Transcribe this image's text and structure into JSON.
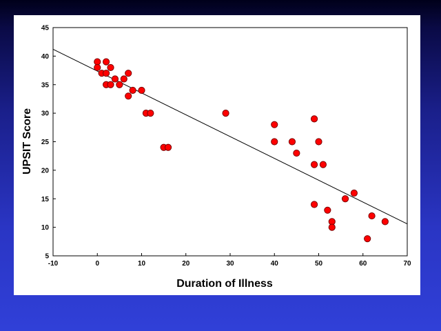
{
  "chart_data": {
    "type": "scatter",
    "title": "",
    "xlabel": "Duration of Illness",
    "ylabel": "UPSIT Score",
    "xlim": [
      -10,
      70
    ],
    "ylim": [
      5,
      45
    ],
    "x_ticks": [
      -10,
      0,
      10,
      20,
      30,
      40,
      50,
      60,
      70
    ],
    "y_ticks": [
      5,
      10,
      15,
      20,
      25,
      30,
      35,
      40,
      45
    ],
    "grid": false,
    "series": [
      {
        "color": "#ff0000",
        "points": [
          {
            "x": 0,
            "y": 39
          },
          {
            "x": 0,
            "y": 38
          },
          {
            "x": 1,
            "y": 37
          },
          {
            "x": 2,
            "y": 39
          },
          {
            "x": 2,
            "y": 37
          },
          {
            "x": 3,
            "y": 38
          },
          {
            "x": 2,
            "y": 35
          },
          {
            "x": 3,
            "y": 35
          },
          {
            "x": 4,
            "y": 36
          },
          {
            "x": 5,
            "y": 35
          },
          {
            "x": 6,
            "y": 36
          },
          {
            "x": 7,
            "y": 37
          },
          {
            "x": 7,
            "y": 33
          },
          {
            "x": 8,
            "y": 34
          },
          {
            "x": 10,
            "y": 34
          },
          {
            "x": 11,
            "y": 30
          },
          {
            "x": 12,
            "y": 30
          },
          {
            "x": 15,
            "y": 24
          },
          {
            "x": 16,
            "y": 24
          },
          {
            "x": 29,
            "y": 30
          },
          {
            "x": 40,
            "y": 28
          },
          {
            "x": 40,
            "y": 25
          },
          {
            "x": 44,
            "y": 25
          },
          {
            "x": 45,
            "y": 23
          },
          {
            "x": 49,
            "y": 29
          },
          {
            "x": 49,
            "y": 21
          },
          {
            "x": 50,
            "y": 25
          },
          {
            "x": 51,
            "y": 21
          },
          {
            "x": 49,
            "y": 14
          },
          {
            "x": 52,
            "y": 13
          },
          {
            "x": 53,
            "y": 11
          },
          {
            "x": 53,
            "y": 10
          },
          {
            "x": 56,
            "y": 15
          },
          {
            "x": 58,
            "y": 16
          },
          {
            "x": 62,
            "y": 12
          },
          {
            "x": 61,
            "y": 8
          },
          {
            "x": 65,
            "y": 11
          }
        ]
      }
    ],
    "trendline": {
      "x": [
        -10,
        70
      ],
      "y": [
        41.2,
        10.6
      ]
    },
    "colors": {
      "marker": "#ff0000",
      "marker_edge": "#7a0000",
      "axes": "#000000",
      "line": "#000000"
    }
  }
}
